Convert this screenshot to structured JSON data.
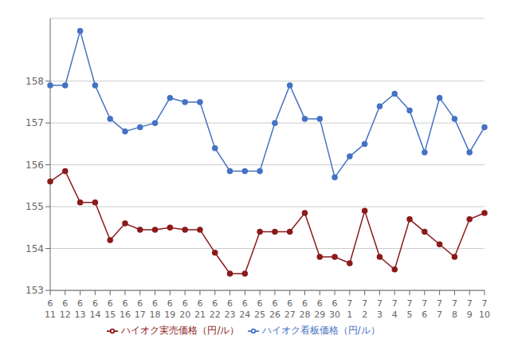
{
  "chart_data": {
    "type": "line",
    "categories": [
      "6\n11",
      "6\n12",
      "6\n13",
      "6\n14",
      "6\n15",
      "6\n16",
      "6\n17",
      "6\n18",
      "6\n19",
      "6\n20",
      "6\n21",
      "6\n22",
      "6\n23",
      "6\n24",
      "6\n25",
      "6\n26",
      "6\n27",
      "6\n28",
      "6\n29",
      "6\n30",
      "7\n1",
      "7\n2",
      "7\n3",
      "7\n4",
      "7\n5",
      "7\n6",
      "7\n7",
      "7\n8",
      "7\n9",
      "7\n10"
    ],
    "series": [
      {
        "name": "ハイオク看板価格（円/ル）",
        "color": "#4472C4",
        "marker": "circle",
        "values": [
          157.9,
          157.9,
          159.2,
          157.9,
          157.1,
          156.8,
          156.9,
          157.0,
          157.6,
          157.5,
          157.5,
          156.4,
          155.85,
          155.85,
          155.85,
          157.0,
          157.9,
          157.1,
          157.1,
          155.7,
          156.2,
          156.5,
          157.4,
          157.7,
          157.3,
          156.3,
          157.6,
          157.1,
          156.3,
          156.9
        ]
      },
      {
        "name": "ハイオク実売価格（円/ル）",
        "color": "#8B1A1A",
        "marker": "circle",
        "values": [
          155.6,
          155.85,
          155.1,
          155.1,
          154.2,
          154.6,
          154.45,
          154.45,
          154.5,
          154.45,
          154.45,
          153.9,
          153.4,
          153.4,
          154.4,
          154.4,
          154.4,
          154.85,
          153.8,
          153.8,
          153.65,
          154.9,
          153.8,
          153.5,
          154.7,
          154.4,
          154.1,
          153.8,
          154.7,
          154.85
        ]
      }
    ],
    "ylim": [
      153.0,
      159.5
    ],
    "yticks": [
      153,
      154,
      155,
      156,
      157,
      158
    ],
    "grid": true,
    "legend": "bottom"
  }
}
